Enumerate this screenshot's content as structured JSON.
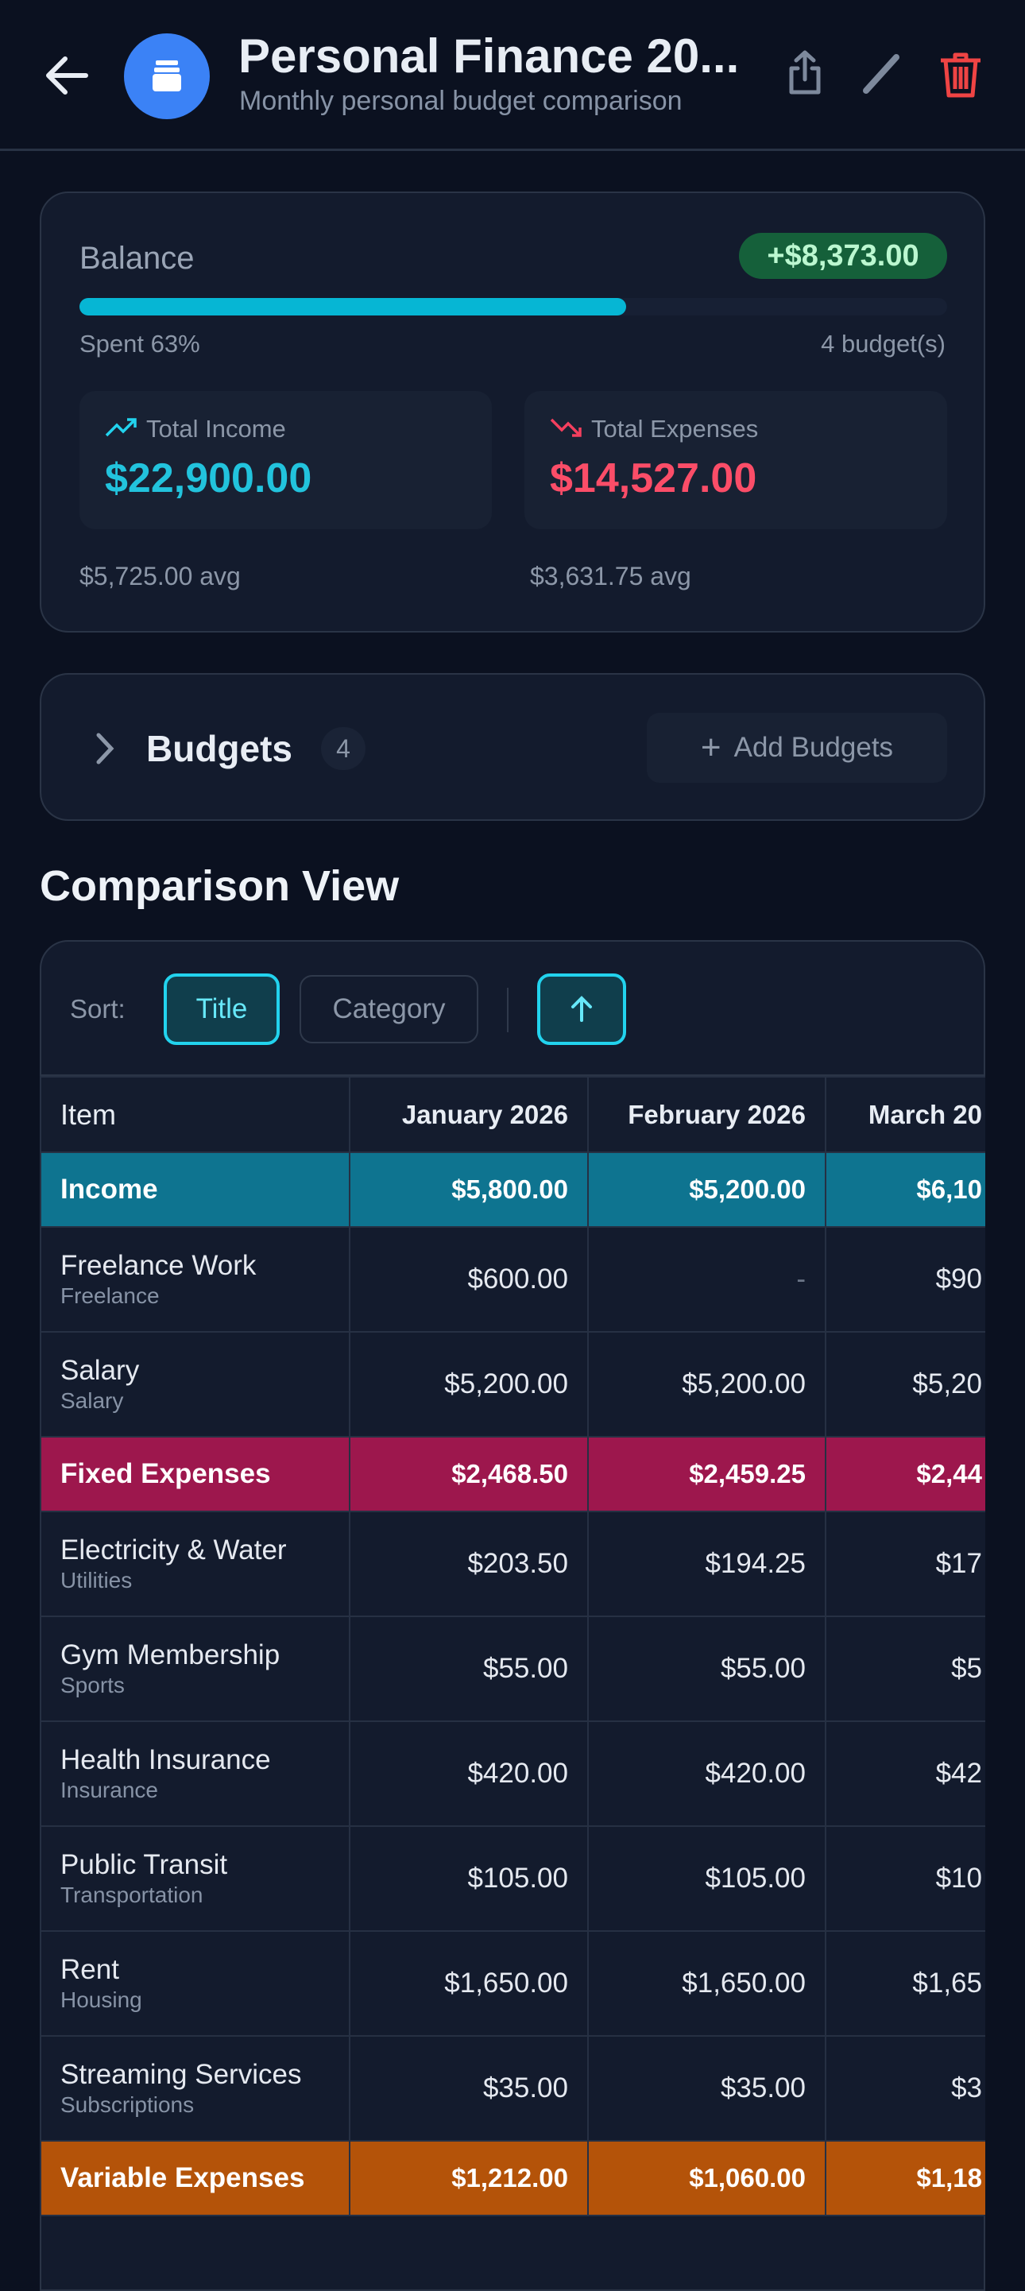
{
  "header": {
    "title": "Personal Finance 20...",
    "subtitle": "Monthly personal budget comparison"
  },
  "balance": {
    "label": "Balance",
    "amount": "+$8,373.00",
    "spent_label": "Spent 63%",
    "spent_fraction": 0.63,
    "budget_count": "4 budget(s)",
    "income": {
      "label": "Total Income",
      "value": "$22,900.00",
      "avg": "$5,725.00 avg"
    },
    "expenses": {
      "label": "Total Expenses",
      "value": "$14,527.00",
      "avg": "$3,631.75 avg"
    }
  },
  "budgets": {
    "label": "Budgets",
    "count": "4",
    "add_label": "Add Budgets"
  },
  "comparison": {
    "title": "Comparison View",
    "sort_label": "Sort:",
    "sort_options": [
      "Title",
      "Category"
    ],
    "active_sort": "Title",
    "direction": "ascending",
    "columns": [
      "Item",
      "January 2026",
      "February 2026",
      "March 20"
    ],
    "rows": [
      {
        "type": "group",
        "name": "Income",
        "color": "#0e7490",
        "values": [
          "$5,800.00",
          "$5,200.00",
          "$6,10"
        ]
      },
      {
        "type": "line",
        "name": "Freelance Work",
        "category": "Freelance",
        "values": [
          "$600.00",
          "-",
          "$90"
        ]
      },
      {
        "type": "line",
        "name": "Salary",
        "category": "Salary",
        "values": [
          "$5,200.00",
          "$5,200.00",
          "$5,20"
        ]
      },
      {
        "type": "group",
        "name": "Fixed Expenses",
        "color": "#9d174d",
        "values": [
          "$2,468.50",
          "$2,459.25",
          "$2,44"
        ]
      },
      {
        "type": "line",
        "name": "Electricity & Water",
        "category": "Utilities",
        "values": [
          "$203.50",
          "$194.25",
          "$17"
        ]
      },
      {
        "type": "line",
        "name": "Gym Membership",
        "category": "Sports",
        "values": [
          "$55.00",
          "$55.00",
          "$5"
        ]
      },
      {
        "type": "line",
        "name": "Health Insurance",
        "category": "Insurance",
        "values": [
          "$420.00",
          "$420.00",
          "$42"
        ]
      },
      {
        "type": "line",
        "name": "Public Transit",
        "category": "Transportation",
        "values": [
          "$105.00",
          "$105.00",
          "$10"
        ]
      },
      {
        "type": "line",
        "name": "Rent",
        "category": "Housing",
        "values": [
          "$1,650.00",
          "$1,650.00",
          "$1,65"
        ]
      },
      {
        "type": "line",
        "name": "Streaming Services",
        "category": "Subscriptions",
        "values": [
          "$35.00",
          "$35.00",
          "$3"
        ]
      },
      {
        "type": "group",
        "name": "Variable Expenses",
        "color": "#b45309",
        "values": [
          "$1,212.00",
          "$1,060.00",
          "$1,18"
        ]
      }
    ]
  }
}
